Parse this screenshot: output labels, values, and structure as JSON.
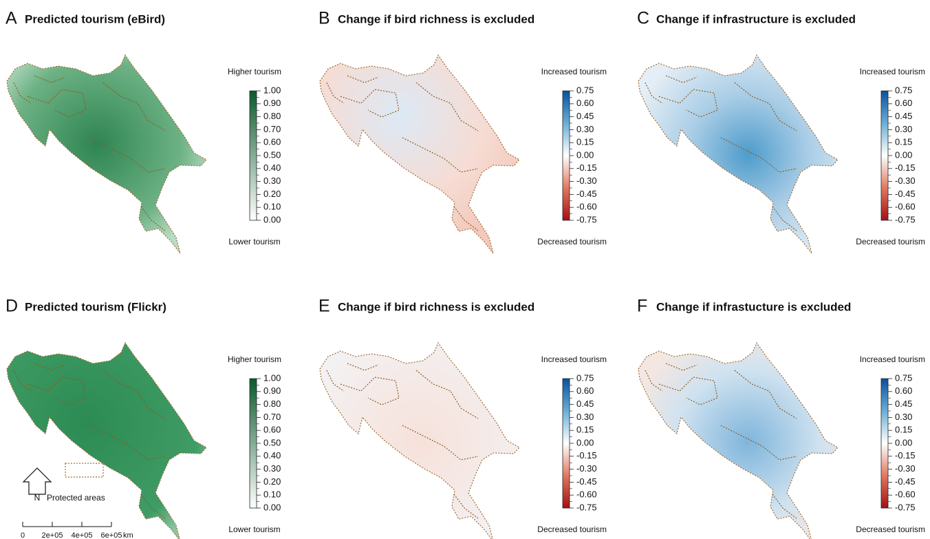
{
  "panels": [
    {
      "letter": "A",
      "title": "Predicted tourism (eBird)",
      "legend_top": "Higher tourism",
      "legend_bottom": "Lower tourism",
      "scale": "green",
      "ticks": [
        {
          "value": 1,
          "label": "1.00"
        },
        {
          "value": 0.9,
          "label": "0.90"
        },
        {
          "value": 0.8,
          "label": "0.80"
        },
        {
          "value": 0.7,
          "label": "0.70"
        },
        {
          "value": 0.6,
          "label": "0.60"
        },
        {
          "value": 0.5,
          "label": "0.50"
        },
        {
          "value": 0.4,
          "label": "0.40"
        },
        {
          "value": 0.3,
          "label": "0.30"
        },
        {
          "value": 0.2,
          "label": "0.20"
        },
        {
          "value": 0.1,
          "label": "0.10"
        },
        {
          "value": 0,
          "label": "0.00"
        }
      ]
    },
    {
      "letter": "B",
      "title": "Change if bird richness is excluded",
      "legend_top": "Increased tourism",
      "legend_bottom": "Decreased tourism",
      "scale": "diverging",
      "ticks": [
        0.75,
        {
          "value": 0.6,
          "label": "0.60"
        },
        0.45,
        {
          "value": 0.3,
          "label": "0.30"
        },
        0.15,
        {
          "value": 0,
          "label": "0.00"
        },
        -0.15,
        {
          "value": -0.3,
          "label": "-0.30"
        },
        -0.45,
        {
          "value": -0.6,
          "label": "-0.60"
        },
        -0.75
      ]
    },
    {
      "letter": "C",
      "title": "Change if infrastructure is excluded",
      "legend_top": "Increased tourism",
      "legend_bottom": "Decreased tourism",
      "scale": "diverging",
      "ticks": [
        0.75,
        {
          "value": 0.6,
          "label": "0.60"
        },
        0.45,
        {
          "value": 0.3,
          "label": "0.30"
        },
        0.15,
        {
          "value": 0,
          "label": "0.00"
        },
        -0.15,
        {
          "value": -0.3,
          "label": "-0.30"
        },
        -0.45,
        {
          "value": -0.6,
          "label": "-0.60"
        },
        -0.75
      ]
    },
    {
      "letter": "D",
      "title": "Predicted tourism (Flickr)",
      "legend_top": "Higher tourism",
      "legend_bottom": "Lower tourism",
      "scale": "green",
      "ticks": [
        {
          "value": 1,
          "label": "1.00"
        },
        {
          "value": 0.9,
          "label": "0.90"
        },
        {
          "value": 0.8,
          "label": "0.80"
        },
        {
          "value": 0.7,
          "label": "0.70"
        },
        {
          "value": 0.6,
          "label": "0.60"
        },
        {
          "value": 0.5,
          "label": "0.50"
        },
        {
          "value": 0.4,
          "label": "0.40"
        },
        {
          "value": 0.3,
          "label": "0.30"
        },
        {
          "value": 0.2,
          "label": "0.20"
        },
        {
          "value": 0.1,
          "label": "0.10"
        },
        {
          "value": 0,
          "label": "0.00"
        }
      ]
    },
    {
      "letter": "E",
      "title": "Change if bird richness is excluded",
      "legend_top": "Increased tourism",
      "legend_bottom": "Decreased tourism",
      "scale": "diverging",
      "ticks": [
        0.75,
        {
          "value": 0.6,
          "label": "0.60"
        },
        0.45,
        {
          "value": 0.3,
          "label": "0.30"
        },
        0.15,
        {
          "value": 0,
          "label": "0.00"
        },
        -0.15,
        {
          "value": -0.3,
          "label": "-0.30"
        },
        -0.45,
        {
          "value": -0.6,
          "label": "-0.60"
        },
        -0.75
      ]
    },
    {
      "letter": "F",
      "title": "Change if infrastucture is excluded",
      "legend_top": "Increased tourism",
      "legend_bottom": "Decreased tourism",
      "scale": "diverging",
      "ticks": [
        0.75,
        {
          "value": 0.6,
          "label": "0.60"
        },
        0.45,
        {
          "value": 0.3,
          "label": "0.30"
        },
        0.15,
        {
          "value": 0,
          "label": "0.00"
        },
        -0.15,
        {
          "value": -0.3,
          "label": "-0.30"
        },
        -0.45,
        {
          "value": -0.6,
          "label": "-0.60"
        },
        -0.75
      ]
    }
  ],
  "map_legend": {
    "north": "N",
    "protected": "Protected areas",
    "scale_ticks": [
      {
        "value": 0,
        "label": "0"
      },
      {
        "value": 200000,
        "label": "2e+05"
      },
      {
        "value": 400000,
        "label": "4e+05"
      },
      {
        "value": 600000,
        "label": "6e+05"
      }
    ],
    "scale_unit": "km"
  }
}
